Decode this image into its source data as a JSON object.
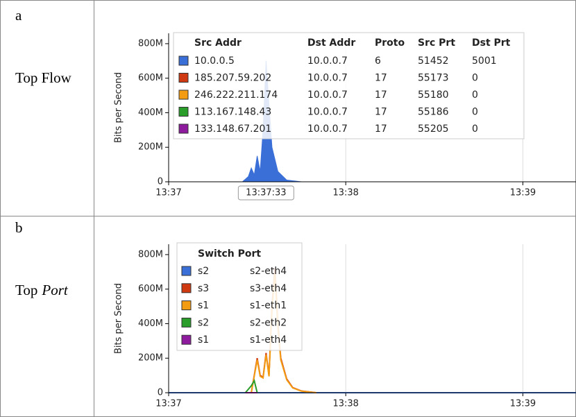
{
  "panels": [
    {
      "letter": "a",
      "label": "Top Flow"
    },
    {
      "letter": "b",
      "label": "Top",
      "label_italic": "Port"
    }
  ],
  "chart_data": [
    {
      "type": "area",
      "ylabel": "Bits per Second",
      "xlim": [
        49020,
        49158
      ],
      "ylim": [
        0,
        860000000
      ],
      "xticks": [
        {
          "value": 49020,
          "label": "13:37"
        },
        {
          "value": 49080,
          "label": "13:38"
        },
        {
          "value": 49140,
          "label": "13:39"
        }
      ],
      "yticks": [
        0,
        {
          "value": 200000000,
          "label": "200M"
        },
        {
          "value": 400000000,
          "label": "400M"
        },
        {
          "value": 600000000,
          "label": "600M"
        },
        {
          "value": 800000000,
          "label": "800M"
        }
      ],
      "grid": true,
      "cursor_label": {
        "value": 49053,
        "label": "13:37:33"
      },
      "legend_columns": [
        "Src Addr",
        "Dst Addr",
        "Proto",
        "Src Prt",
        "Dst Prt"
      ],
      "series": [
        {
          "name": "10.0.0.5",
          "fields": [
            "10.0.0.7",
            "6",
            "51452",
            "5001"
          ],
          "color": "#3a6fd8",
          "x": [
            49045,
            49047,
            49048,
            49049,
            49050,
            49051,
            49052,
            49053,
            49054,
            49055,
            49057,
            49060,
            49065
          ],
          "values": [
            0,
            30000000,
            80000000,
            40000000,
            150000000,
            60000000,
            300000000,
            700000000,
            450000000,
            200000000,
            60000000,
            10000000,
            0
          ]
        },
        {
          "name": "185.207.59.202",
          "fields": [
            "10.0.0.7",
            "17",
            "55173",
            "0"
          ],
          "color": "#d03a12",
          "x": [
            49045,
            49065
          ],
          "values": [
            0,
            0
          ]
        },
        {
          "name": "246.222.211.174",
          "fields": [
            "10.0.0.7",
            "17",
            "55180",
            "0"
          ],
          "color": "#f39c12",
          "x": [
            49045,
            49065
          ],
          "values": [
            0,
            0
          ]
        },
        {
          "name": "113.167.148.43",
          "fields": [
            "10.0.0.7",
            "17",
            "55186",
            "0"
          ],
          "color": "#2a9d2a",
          "x": [
            49045,
            49065
          ],
          "values": [
            0,
            0
          ]
        },
        {
          "name": "133.148.67.201",
          "fields": [
            "10.0.0.7",
            "17",
            "55205",
            "0"
          ],
          "color": "#8e1a9e",
          "x": [
            49045,
            49065
          ],
          "values": [
            0,
            0
          ]
        }
      ]
    },
    {
      "type": "line",
      "ylabel": "Bits per Second",
      "xlim": [
        49020,
        49158
      ],
      "ylim": [
        0,
        860000000
      ],
      "xticks": [
        {
          "value": 49020,
          "label": "13:37"
        },
        {
          "value": 49080,
          "label": "13:38"
        },
        {
          "value": 49140,
          "label": "13:39"
        }
      ],
      "yticks": [
        0,
        {
          "value": 200000000,
          "label": "200M"
        },
        {
          "value": 400000000,
          "label": "400M"
        },
        {
          "value": 600000000,
          "label": "600M"
        },
        {
          "value": 800000000,
          "label": "800M"
        }
      ],
      "grid": true,
      "legend_title": "Switch Port",
      "series": [
        {
          "name": "s2",
          "port": "s2-eth4",
          "color": "#3a6fd8",
          "x": [
            49020,
            49158
          ],
          "values": [
            0,
            0
          ]
        },
        {
          "name": "s3",
          "port": "s3-eth4",
          "color": "#d03a12",
          "x": [
            49048,
            49050,
            49051,
            49052,
            49053,
            49054,
            49055,
            49056,
            49057,
            49058,
            49060,
            49062,
            49065,
            49070
          ],
          "values": [
            0,
            200000000,
            100000000,
            90000000,
            230000000,
            100000000,
            500000000,
            720000000,
            400000000,
            200000000,
            80000000,
            30000000,
            10000000,
            0
          ]
        },
        {
          "name": "s1",
          "port": "s1-eth1",
          "color": "#f39c12",
          "x": [
            49048,
            49050,
            49051,
            49052,
            49053,
            49054,
            49055,
            49056,
            49057,
            49058,
            49060,
            49062,
            49065,
            49070
          ],
          "values": [
            0,
            190000000,
            95000000,
            85000000,
            220000000,
            95000000,
            480000000,
            690000000,
            380000000,
            190000000,
            75000000,
            28000000,
            9000000,
            0
          ]
        },
        {
          "name": "s2",
          "port": "s2-eth2",
          "color": "#2a9d2a",
          "x": [
            49046,
            49048,
            49049,
            49050
          ],
          "values": [
            0,
            40000000,
            70000000,
            0
          ]
        },
        {
          "name": "s1",
          "port": "s1-eth4",
          "color": "#8e1a9e",
          "x": [
            49046,
            49050
          ],
          "values": [
            0,
            0
          ]
        }
      ]
    }
  ]
}
